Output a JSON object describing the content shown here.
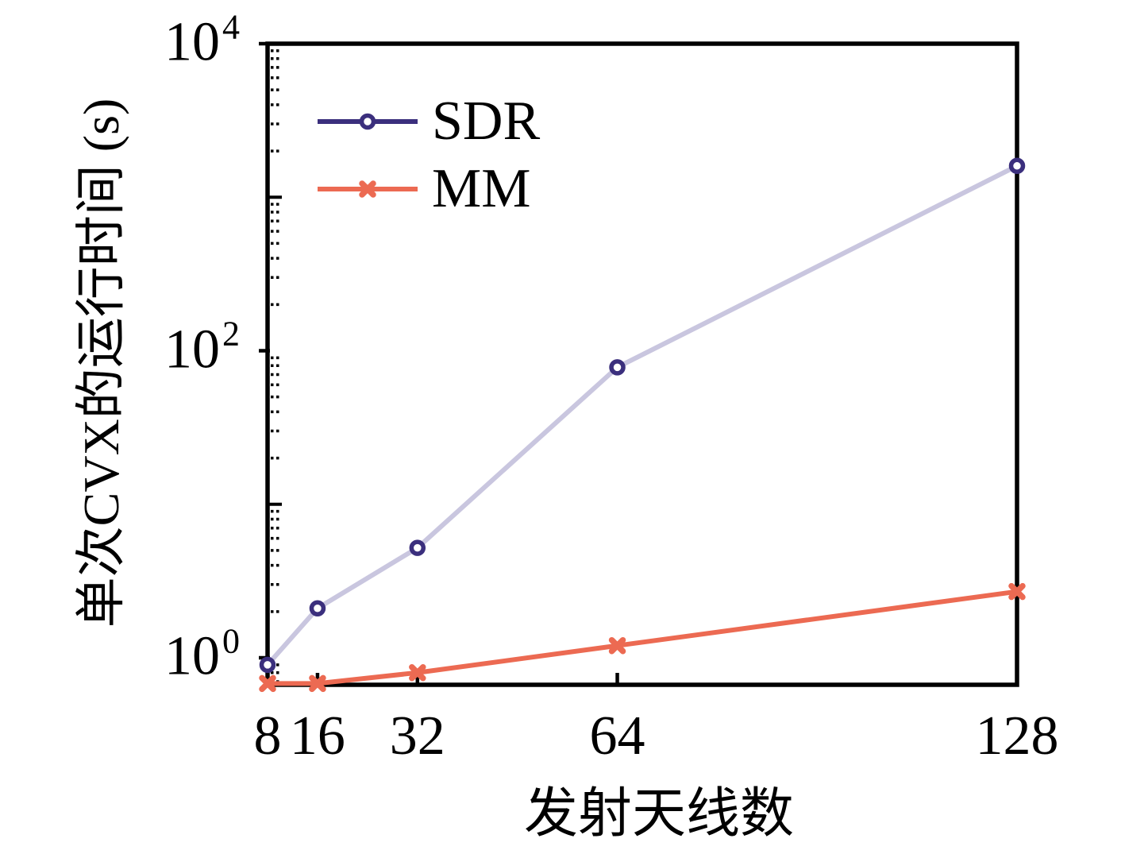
{
  "chart_data": {
    "type": "line",
    "title": "",
    "xlabel": "发射天线数",
    "ylabel": "单次CVX的运行时间 (s)",
    "x_scale": "linear",
    "y_scale": "log",
    "x_range": [
      8,
      128
    ],
    "y_range": [
      0.667,
      10000
    ],
    "grid": false,
    "x": [
      8,
      16,
      32,
      64,
      128
    ],
    "x_tick_labels": [
      "8",
      "16",
      "32",
      "64",
      "128"
    ],
    "y_ticks": [
      {
        "base": "10",
        "exp": "0",
        "value": 1
      },
      {
        "base": "10",
        "exp": "2",
        "value": 100
      },
      {
        "base": "10",
        "exp": "4",
        "value": 10000
      }
    ],
    "series": [
      {
        "name": "SDR",
        "values": [
          0.9,
          2.1,
          5.2,
          78,
          1600
        ],
        "line_color": "#c9c6df",
        "marker": "circle",
        "marker_color": "#3b2f7d",
        "legend_line_color": "#3b2f7d"
      },
      {
        "name": "MM",
        "values": [
          0.68,
          0.68,
          0.8,
          1.2,
          2.7
        ],
        "line_color": "#ec6a52",
        "marker": "x",
        "marker_color": "#ec6a52",
        "legend_line_color": "#ec6a52"
      }
    ],
    "legend": {
      "position": "upper-left",
      "entries": [
        "SDR",
        "MM"
      ]
    },
    "axis_color": "#000000",
    "background_color": "#ffffff"
  }
}
